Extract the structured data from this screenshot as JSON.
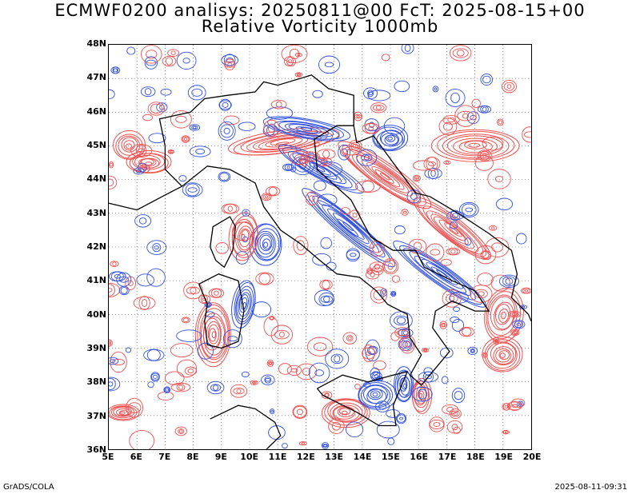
{
  "header": {
    "title_line_1": "ECMWF0200 analisys: 20250811@00 FcT: 2025-08-15+00",
    "title_line_2": "Relative Vorticity 1000mb"
  },
  "map": {
    "lat_labels": [
      "48N",
      "47N",
      "46N",
      "45N",
      "44N",
      "43N",
      "42N",
      "41N",
      "40N",
      "39N",
      "38N",
      "37N",
      "36N"
    ],
    "lon_labels": [
      "5E",
      "6E",
      "7E",
      "8E",
      "9E",
      "10E",
      "11E",
      "12E",
      "13E",
      "14E",
      "15E",
      "16E",
      "17E",
      "18E",
      "19E",
      "20E"
    ],
    "lat_range": [
      36,
      48
    ],
    "lon_range": [
      5,
      20
    ],
    "grid": "dotted",
    "colors": {
      "positive_contour": "#f05050",
      "negative_contour": "#3050e0",
      "coastline": "#000000",
      "grid": "#888888"
    }
  },
  "footer": {
    "left": "GrADS/COLA",
    "right": "2025-08-11-09:31"
  }
}
